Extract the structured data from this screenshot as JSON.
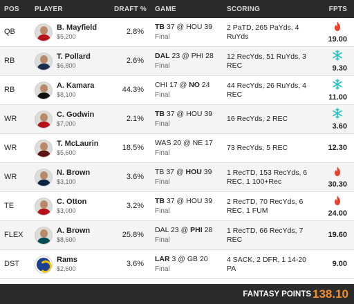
{
  "header": {
    "pos": "POS",
    "player": "PLAYER",
    "draft": "DRAFT %",
    "game": "GAME",
    "scoring": "SCORING",
    "fpts": "FPTS"
  },
  "rows": [
    {
      "pos": "QB",
      "name": "B. Mayfield",
      "salary": "$5,200",
      "draft": "2.8%",
      "away": "TB",
      "away_score": "37",
      "home": "HOU",
      "home_score": "39",
      "bold": "away",
      "status": "Final",
      "scoring": "2 PaTD, 265 PaYds, 4 RuYds",
      "fpts": "19.00",
      "icon": "fire-icon",
      "jersey": "#b5121b"
    },
    {
      "pos": "RB",
      "name": "T. Pollard",
      "salary": "$6,800",
      "draft": "2.6%",
      "away": "DAL",
      "away_score": "23",
      "home": "PHI",
      "home_score": "28",
      "bold": "away",
      "status": "Final",
      "scoring": "12 RecYds, 51 RuYds, 3 REC",
      "fpts": "9.30",
      "icon": "snowflake-icon",
      "jersey": "#1c2d4f"
    },
    {
      "pos": "RB",
      "name": "A. Kamara",
      "salary": "$8,100",
      "draft": "44.3%",
      "away": "CHI",
      "away_score": "17",
      "home": "NO",
      "home_score": "24",
      "bold": "home",
      "status": "Final",
      "scoring": "44 RecYds, 26 RuYds, 4 REC",
      "fpts": "11.00",
      "icon": "snowflake-icon",
      "jersey": "#111111"
    },
    {
      "pos": "WR",
      "name": "C. Godwin",
      "salary": "$7,000",
      "draft": "2.1%",
      "away": "TB",
      "away_score": "37",
      "home": "HOU",
      "home_score": "39",
      "bold": "away",
      "status": "Final",
      "scoring": "16 RecYds, 2 REC",
      "fpts": "3.60",
      "icon": "snowflake-icon",
      "jersey": "#b5121b"
    },
    {
      "pos": "WR",
      "name": "T. McLaurin",
      "salary": "$5,600",
      "draft": "18.5%",
      "away": "WAS",
      "away_score": "20",
      "home": "NE",
      "home_score": "17",
      "bold": "none",
      "status": "Final",
      "scoring": "73 RecYds, 5 REC",
      "fpts": "12.30",
      "icon": "",
      "jersey": "#5a1414"
    },
    {
      "pos": "WR",
      "name": "N. Brown",
      "salary": "$3,100",
      "draft": "3.6%",
      "away": "TB",
      "away_score": "37",
      "home": "HOU",
      "home_score": "39",
      "bold": "home",
      "status": "Final",
      "scoring": "1 RecTD, 153 RecYds, 6 REC, 1 100+Rec",
      "fpts": "30.30",
      "icon": "fire-icon",
      "jersey": "#0a2342"
    },
    {
      "pos": "TE",
      "name": "C. Otton",
      "salary": "$3,000",
      "draft": "3.2%",
      "away": "TB",
      "away_score": "37",
      "home": "HOU",
      "home_score": "39",
      "bold": "away",
      "status": "Final",
      "scoring": "2 RecTD, 70 RecYds, 6 REC, 1 FUM",
      "fpts": "24.00",
      "icon": "fire-icon",
      "jersey": "#b5121b"
    },
    {
      "pos": "FLEX",
      "name": "A. Brown",
      "salary": "$8,600",
      "draft": "25.8%",
      "away": "DAL",
      "away_score": "23",
      "home": "PHI",
      "home_score": "28",
      "bold": "home",
      "status": "Final",
      "scoring": "1 RecTD, 66 RecYds, 7 REC",
      "fpts": "19.60",
      "icon": "",
      "jersey": "#004c54"
    },
    {
      "pos": "DST",
      "name": "Rams",
      "salary": "$2,600",
      "draft": "3.6%",
      "away": "LAR",
      "away_score": "3",
      "home": "GB",
      "home_score": "20",
      "bold": "away",
      "status": "Final",
      "scoring": "4 SACK, 2 DFR, 1 14-20 PA",
      "fpts": "9.00",
      "icon": "",
      "jersey": "#1c3f91",
      "team_logo": true
    }
  ],
  "footer": {
    "label": "FANTASY POINTS",
    "total": "138.10"
  },
  "colors": {
    "header_bg": "#2b2b2b",
    "fire": "#e8402c",
    "snowflake": "#2cc1c1",
    "total": "#f28c28"
  }
}
